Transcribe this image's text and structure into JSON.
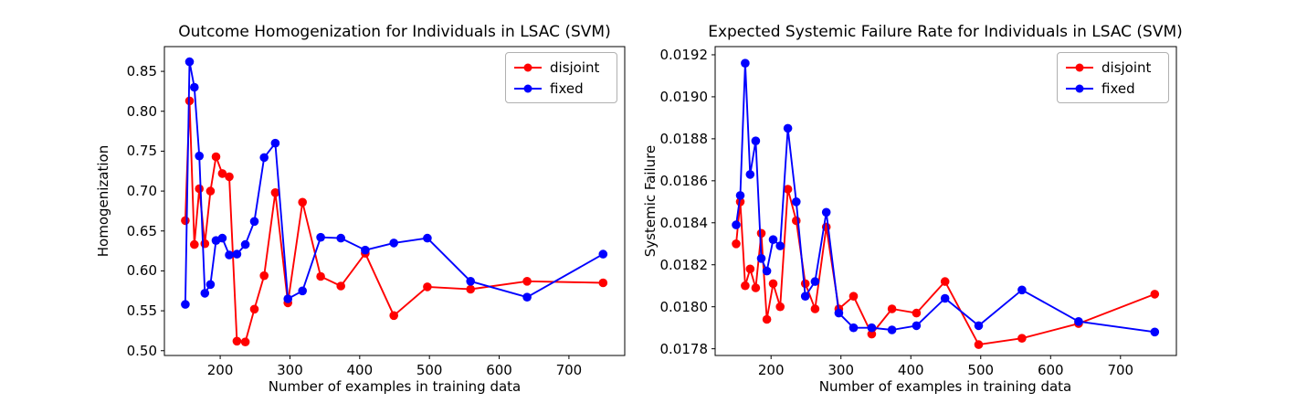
{
  "figure": {
    "background": "#ffffff"
  },
  "chart_data": [
    {
      "type": "line",
      "title": "Outcome Homogenization for Individuals in LSAC (SVM)",
      "xlabel": "Number of examples in training data",
      "ylabel": "Homogenization",
      "x": [
        150,
        156,
        163,
        170,
        178,
        186,
        194,
        203,
        213,
        224,
        236,
        249,
        263,
        279,
        297,
        318,
        344,
        373,
        408,
        449,
        497,
        559,
        640,
        749
      ],
      "series": [
        {
          "name": "disjoint",
          "color": "#ff0000",
          "values": [
            0.663,
            0.813,
            0.633,
            0.703,
            0.634,
            0.7,
            0.743,
            0.722,
            0.718,
            0.512,
            0.511,
            0.552,
            0.594,
            0.698,
            0.56,
            0.686,
            0.593,
            0.581,
            0.622,
            0.544,
            0.58,
            0.577,
            0.587,
            0.585
          ]
        },
        {
          "name": "fixed",
          "color": "#0000ff",
          "values": [
            0.558,
            0.862,
            0.83,
            0.744,
            0.572,
            0.583,
            0.638,
            0.641,
            0.62,
            0.621,
            0.633,
            0.662,
            0.742,
            0.76,
            0.565,
            0.575,
            0.642,
            0.641,
            0.626,
            0.635,
            0.641,
            0.587,
            0.567,
            0.621
          ]
        }
      ],
      "xlim": [
        120,
        780
      ],
      "ylim": [
        0.494,
        0.881
      ],
      "xticks": [
        200,
        300,
        400,
        500,
        600,
        700
      ],
      "xtick_labels": [
        "200",
        "300",
        "400",
        "500",
        "600",
        "700"
      ],
      "ytick_values": [
        0.5,
        0.55,
        0.6,
        0.65,
        0.7,
        0.75,
        0.8,
        0.85
      ],
      "ytick_labels": [
        "0.50",
        "0.55",
        "0.60",
        "0.65",
        "0.70",
        "0.75",
        "0.80",
        "0.85"
      ],
      "legend": {
        "position": "upper right",
        "entries": [
          "disjoint",
          "fixed"
        ]
      },
      "grid": false
    },
    {
      "type": "line",
      "title": "Expected Systemic Failure Rate for Individuals in LSAC (SVM)",
      "xlabel": "Number of examples in training data",
      "ylabel": "Systemic Failure",
      "x": [
        150,
        156,
        163,
        170,
        178,
        186,
        194,
        203,
        213,
        224,
        236,
        249,
        263,
        279,
        297,
        318,
        344,
        373,
        408,
        449,
        497,
        559,
        640,
        749
      ],
      "series": [
        {
          "name": "disjoint",
          "color": "#ff0000",
          "values": [
            0.0183,
            0.0185,
            0.0181,
            0.01818,
            0.01809,
            0.01835,
            0.01794,
            0.01811,
            0.018,
            0.01856,
            0.01841,
            0.01811,
            0.01799,
            0.01838,
            0.01799,
            0.01805,
            0.01787,
            0.01799,
            0.01797,
            0.01812,
            0.01782,
            0.01785,
            0.01792,
            0.01806
          ]
        },
        {
          "name": "fixed",
          "color": "#0000ff",
          "values": [
            0.01839,
            0.01853,
            0.01916,
            0.01863,
            0.01879,
            0.01823,
            0.01817,
            0.01832,
            0.01829,
            0.01885,
            0.0185,
            0.01805,
            0.01812,
            0.01845,
            0.01797,
            0.0179,
            0.0179,
            0.01789,
            0.01791,
            0.01804,
            0.01791,
            0.01808,
            0.01793,
            0.01788
          ]
        }
      ],
      "xlim": [
        120,
        780
      ],
      "ylim": [
        0.017768,
        0.019239
      ],
      "xticks": [
        200,
        300,
        400,
        500,
        600,
        700
      ],
      "xtick_labels": [
        "200",
        "300",
        "400",
        "500",
        "600",
        "700"
      ],
      "ytick_values": [
        0.0178,
        0.018,
        0.0182,
        0.0184,
        0.0186,
        0.0188,
        0.019,
        0.0192
      ],
      "ytick_labels": [
        "0.0178",
        "0.0180",
        "0.0182",
        "0.0184",
        "0.0186",
        "0.0188",
        "0.0190",
        "0.0192"
      ],
      "legend": {
        "position": "upper right",
        "entries": [
          "disjoint",
          "fixed"
        ]
      },
      "grid": false
    }
  ]
}
